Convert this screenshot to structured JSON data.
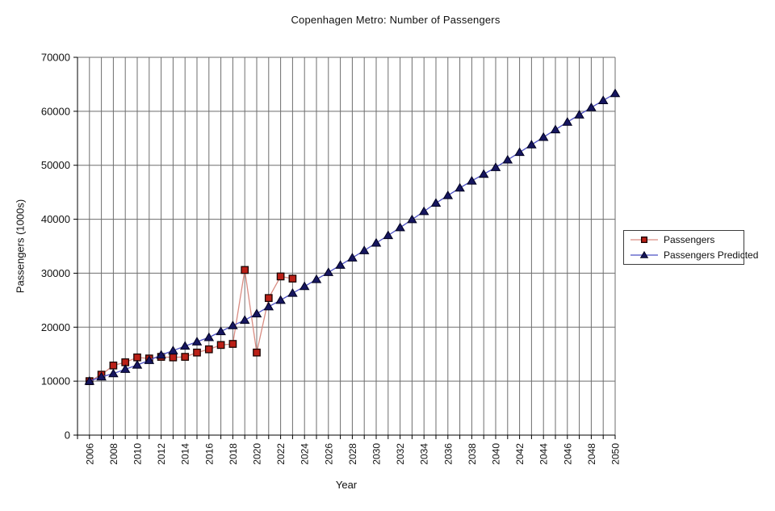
{
  "title": "Copenhagen Metro: Number of Passengers",
  "axes": {
    "x_title": "Year",
    "y_title": "Passengers (1000s)",
    "x_label_years": [
      2006,
      2008,
      2010,
      2012,
      2014,
      2016,
      2018,
      2020,
      2022,
      2024,
      2026,
      2028,
      2030,
      2032,
      2034,
      2036,
      2038,
      2040,
      2042,
      2044,
      2046,
      2048,
      2050
    ],
    "y_tick_values": [
      0,
      10000,
      20000,
      30000,
      40000,
      50000,
      60000,
      70000
    ]
  },
  "legend": {
    "items": [
      {
        "label": "Passengers",
        "marker": "square-icon"
      },
      {
        "label": "Passengers Predicted",
        "marker": "triangle-icon"
      }
    ]
  },
  "colors": {
    "gridline": "#6e6e6e",
    "axis": "#000000",
    "text": "#101010",
    "background": "#ffffff"
  },
  "chart_data": {
    "type": "line",
    "title": "Copenhagen Metro: Number of Passengers",
    "xlabel": "Year",
    "ylabel": "Passengers (1000s)",
    "x_range": [
      2005,
      2050
    ],
    "ylim": [
      0,
      70000
    ],
    "y_step": 10000,
    "grid": true,
    "legend_position": "right",
    "series": [
      {
        "name": "Passengers",
        "marker": "square",
        "line_color": "#d98c82",
        "marker_fill": "#bb2017",
        "marker_stroke": "#1a0402",
        "x": [
          2006,
          2007,
          2008,
          2009,
          2010,
          2011,
          2012,
          2013,
          2014,
          2015,
          2016,
          2017,
          2018,
          2019,
          2020,
          2021,
          2022,
          2023
        ],
        "values": [
          10000,
          11200,
          12900,
          13500,
          14400,
          14200,
          14500,
          14400,
          14500,
          15300,
          15900,
          16700,
          16900,
          30600,
          15300,
          25400,
          29400,
          29000
        ]
      },
      {
        "name": "Passengers Predicted",
        "marker": "triangle",
        "line_color": "#4c50c4",
        "marker_fill": "#16165f",
        "marker_stroke": "#00001e",
        "x": [
          2006,
          2007,
          2008,
          2009,
          2010,
          2011,
          2012,
          2013,
          2014,
          2015,
          2016,
          2017,
          2018,
          2019,
          2020,
          2021,
          2022,
          2023,
          2024,
          2025,
          2026,
          2027,
          2028,
          2029,
          2030,
          2031,
          2032,
          2033,
          2034,
          2035,
          2036,
          2037,
          2038,
          2039,
          2040,
          2041,
          2042,
          2043,
          2044,
          2045,
          2046,
          2047,
          2048,
          2049,
          2050
        ],
        "values": [
          10000,
          10800,
          11400,
          12200,
          13000,
          13850,
          14850,
          15650,
          16500,
          17300,
          18100,
          19200,
          20300,
          21300,
          22500,
          23800,
          25000,
          26300,
          27550,
          28850,
          30150,
          31500,
          32850,
          34200,
          35600,
          37000,
          38450,
          39950,
          41450,
          43000,
          44400,
          45800,
          47100,
          48350,
          49600,
          51000,
          52400,
          53800,
          55200,
          56600,
          58000,
          59350,
          60700,
          62000,
          63300
        ]
      }
    ]
  }
}
